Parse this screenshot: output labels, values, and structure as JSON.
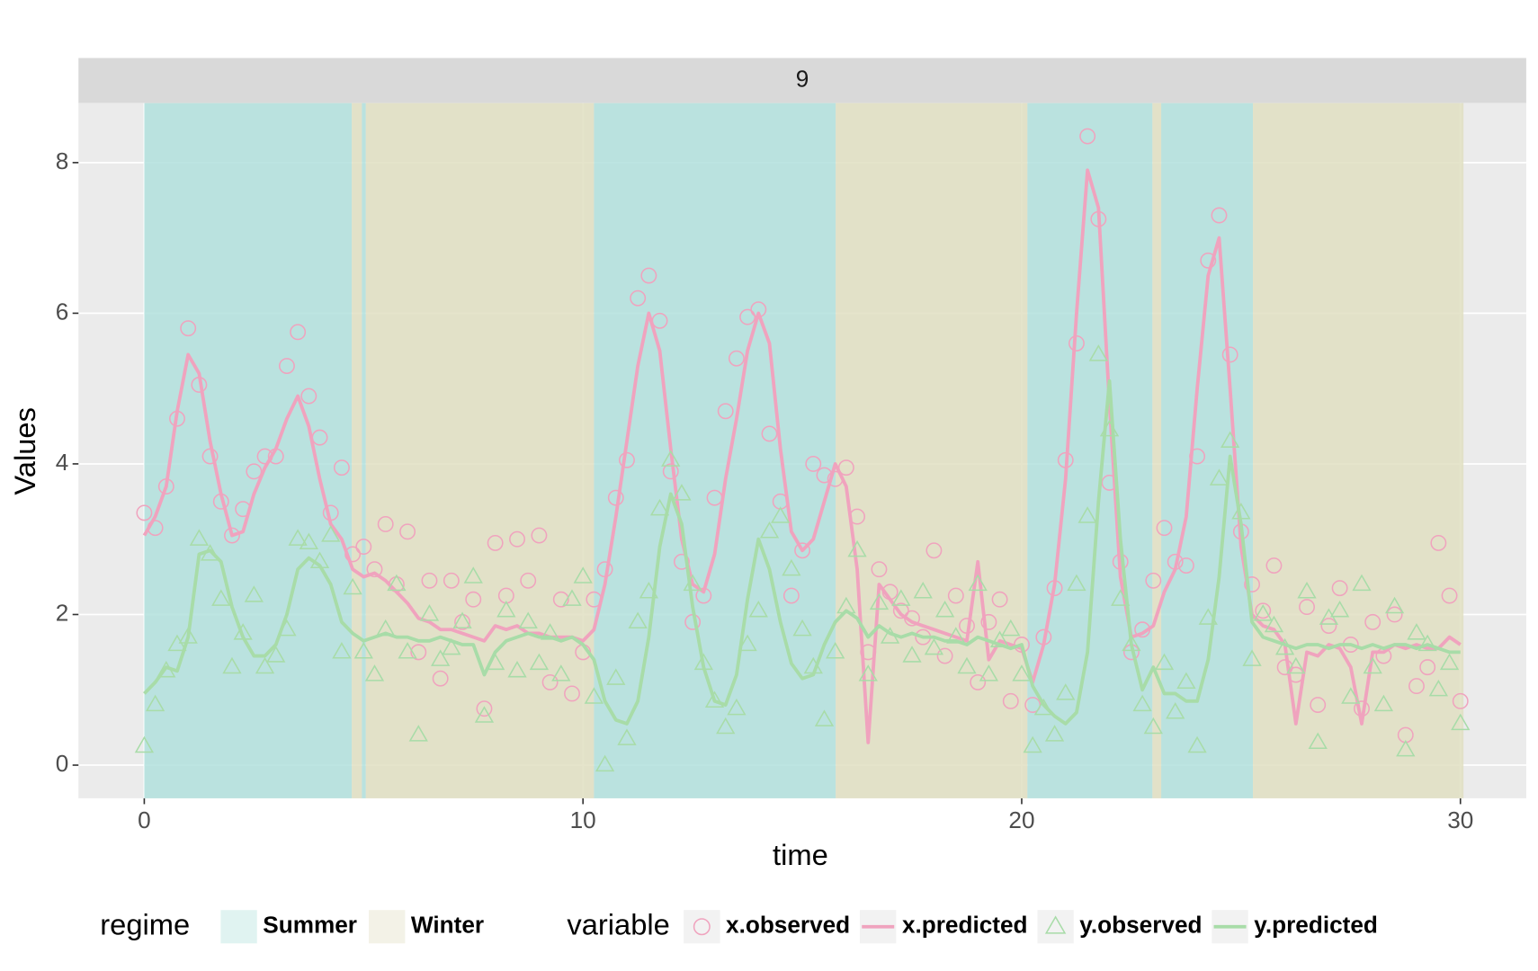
{
  "chart_data": {
    "type": "line",
    "facet_label": "9",
    "xlabel": "time",
    "ylabel": "Values",
    "xlim": [
      -1.5,
      31.5
    ],
    "ylim": [
      -0.44,
      8.79
    ],
    "xticks": [
      0,
      10,
      20,
      30
    ],
    "yticks": [
      0,
      2,
      4,
      6,
      8
    ],
    "grid": true,
    "regime_legend": {
      "title": "regime",
      "names": [
        "Summer",
        "Winter"
      ],
      "colors": [
        "#b2e0dd",
        "#e0dfc2"
      ]
    },
    "regimes": [
      {
        "regime": "Summer",
        "start": 0,
        "end": 4.73
      },
      {
        "regime": "Winter",
        "start": 4.73,
        "end": 4.96
      },
      {
        "regime": "Summer",
        "start": 4.96,
        "end": 5.05
      },
      {
        "regime": "Winter",
        "start": 5.05,
        "end": 10.25
      },
      {
        "regime": "Summer",
        "start": 10.25,
        "end": 15.76
      },
      {
        "regime": "Winter",
        "start": 15.76,
        "end": 20.13
      },
      {
        "regime": "Summer",
        "start": 20.13,
        "end": 22.98
      },
      {
        "regime": "Winter",
        "start": 22.98,
        "end": 23.18
      },
      {
        "regime": "Summer",
        "start": 23.18,
        "end": 25.27
      },
      {
        "regime": "Winter",
        "start": 25.27,
        "end": 30.07
      }
    ],
    "legend_title": "variable",
    "x": [
      0,
      0.25,
      0.5,
      0.75,
      1,
      1.25,
      1.5,
      1.75,
      2,
      2.25,
      2.5,
      2.75,
      3,
      3.25,
      3.5,
      3.75,
      4,
      4.25,
      4.5,
      4.75,
      5,
      5.25,
      5.5,
      5.75,
      6,
      6.25,
      6.5,
      6.75,
      7,
      7.25,
      7.5,
      7.75,
      8,
      8.25,
      8.5,
      8.75,
      9,
      9.25,
      9.5,
      9.75,
      10,
      10.25,
      10.5,
      10.75,
      11,
      11.25,
      11.5,
      11.75,
      12,
      12.25,
      12.5,
      12.75,
      13,
      13.25,
      13.5,
      13.75,
      14,
      14.25,
      14.5,
      14.75,
      15,
      15.25,
      15.5,
      15.75,
      16,
      16.25,
      16.5,
      16.75,
      17,
      17.25,
      17.5,
      17.75,
      18,
      18.25,
      18.5,
      18.75,
      19,
      19.25,
      19.5,
      19.75,
      20,
      20.25,
      20.5,
      20.75,
      21,
      21.25,
      21.5,
      21.75,
      22,
      22.25,
      22.5,
      22.75,
      23,
      23.25,
      23.5,
      23.75,
      24,
      24.25,
      24.5,
      24.75,
      25,
      25.25,
      25.5,
      25.75,
      26,
      26.25,
      26.5,
      26.75,
      27,
      27.25,
      27.5,
      27.75,
      28,
      28.25,
      28.5,
      28.75,
      29,
      29.25,
      29.5,
      29.75,
      30
    ],
    "series": [
      {
        "name": "x.observed",
        "color": "#f0a3be",
        "mode": "markers",
        "marker": "circle",
        "values": [
          3.35,
          3.15,
          3.7,
          4.6,
          5.8,
          5.05,
          4.1,
          3.5,
          3.05,
          3.4,
          3.9,
          4.1,
          4.1,
          5.3,
          5.75,
          4.9,
          4.35,
          3.35,
          3.95,
          2.8,
          2.9,
          2.6,
          3.2,
          2.4,
          3.1,
          1.5,
          2.45,
          1.15,
          2.45,
          1.9,
          2.2,
          0.75,
          2.95,
          2.25,
          3.0,
          2.45,
          3.05,
          1.1,
          2.2,
          0.95,
          1.5,
          2.2,
          2.6,
          3.55,
          4.05,
          6.2,
          6.5,
          5.9,
          3.9,
          2.7,
          1.9,
          2.25,
          3.55,
          4.7,
          5.4,
          5.95,
          6.05,
          4.4,
          3.5,
          2.25,
          2.85,
          4.0,
          3.85,
          3.8,
          3.95,
          3.3,
          1.5,
          2.6,
          2.3,
          2.05,
          1.95,
          1.7,
          2.85,
          1.45,
          2.25,
          1.85,
          1.1,
          1.9,
          2.2,
          0.85,
          1.6,
          0.8,
          1.7,
          2.35,
          4.05,
          5.6,
          8.35,
          7.25,
          3.75,
          2.7,
          1.5,
          1.8,
          2.45,
          3.15,
          2.7,
          2.65,
          4.1,
          6.7,
          7.3,
          5.45,
          3.1,
          2.4,
          2.05,
          2.65,
          1.3,
          1.2,
          2.1,
          0.8,
          1.85,
          2.35,
          1.6,
          0.75,
          1.9,
          1.45,
          2.0,
          0.4,
          1.05,
          1.3,
          2.95,
          2.25,
          0.85
        ]
      },
      {
        "name": "x.predicted",
        "color": "#f0a3be",
        "mode": "lines",
        "values": [
          3.05,
          3.3,
          3.7,
          4.7,
          5.45,
          5.2,
          4.3,
          3.6,
          3.05,
          3.1,
          3.6,
          3.95,
          4.2,
          4.6,
          4.9,
          4.5,
          3.8,
          3.2,
          3.0,
          2.6,
          2.5,
          2.55,
          2.45,
          2.3,
          2.15,
          1.95,
          1.9,
          1.8,
          1.8,
          1.75,
          1.7,
          1.65,
          1.85,
          1.8,
          1.85,
          1.75,
          1.75,
          1.7,
          1.7,
          1.7,
          1.65,
          1.8,
          2.4,
          3.3,
          4.3,
          5.3,
          6.0,
          5.5,
          4.2,
          3.0,
          2.4,
          2.3,
          2.8,
          3.8,
          4.6,
          5.5,
          6.0,
          5.6,
          4.2,
          3.1,
          2.85,
          3.0,
          3.5,
          4.0,
          3.7,
          2.6,
          0.3,
          2.4,
          2.2,
          2.0,
          1.9,
          1.85,
          1.8,
          1.75,
          1.7,
          1.65,
          2.7,
          1.4,
          1.65,
          1.6,
          1.55,
          1.1,
          1.6,
          2.4,
          3.8,
          6.0,
          7.9,
          7.4,
          4.8,
          2.5,
          1.7,
          1.75,
          1.85,
          2.3,
          2.6,
          3.3,
          5.0,
          6.5,
          7.0,
          5.0,
          2.9,
          2.0,
          1.85,
          1.8,
          1.6,
          0.55,
          1.5,
          1.45,
          1.6,
          1.55,
          1.3,
          0.55,
          1.5,
          1.5,
          1.6,
          1.55,
          1.6,
          1.55,
          1.55,
          1.7,
          1.6
        ]
      },
      {
        "name": "y.observed",
        "color": "#a8dca8",
        "mode": "markers",
        "marker": "triangle",
        "values": [
          0.25,
          0.8,
          1.25,
          1.6,
          1.7,
          3.0,
          2.8,
          2.2,
          1.3,
          1.75,
          2.25,
          1.3,
          1.45,
          1.8,
          3.0,
          2.95,
          2.7,
          3.05,
          1.5,
          2.35,
          1.5,
          1.2,
          1.8,
          2.4,
          1.5,
          0.4,
          2.0,
          1.4,
          1.55,
          1.9,
          2.5,
          0.65,
          1.35,
          2.05,
          1.25,
          1.9,
          1.35,
          1.75,
          1.2,
          2.2,
          2.5,
          0.9,
          0.0,
          1.15,
          0.35,
          1.9,
          2.3,
          3.4,
          4.05,
          3.6,
          2.4,
          1.35,
          0.85,
          0.5,
          0.75,
          1.6,
          2.05,
          3.1,
          3.3,
          2.6,
          1.8,
          1.3,
          0.6,
          1.5,
          2.1,
          2.85,
          1.2,
          2.15,
          1.7,
          2.2,
          1.45,
          2.3,
          1.55,
          2.05,
          1.7,
          1.3,
          2.4,
          1.2,
          1.65,
          1.8,
          1.2,
          0.25,
          0.75,
          0.4,
          0.95,
          2.4,
          3.3,
          5.45,
          4.45,
          2.2,
          1.6,
          0.8,
          0.5,
          1.35,
          0.7,
          1.1,
          0.25,
          1.95,
          3.8,
          4.3,
          3.35,
          1.4,
          2.0,
          1.85,
          1.55,
          1.3,
          2.3,
          0.3,
          1.95,
          2.05,
          0.9,
          2.4,
          1.3,
          0.8,
          2.1,
          0.2,
          1.75,
          1.6,
          1.0,
          1.35,
          0.55
        ]
      },
      {
        "name": "y.predicted",
        "color": "#a8dca8",
        "mode": "lines",
        "values": [
          0.95,
          1.1,
          1.3,
          1.25,
          1.7,
          2.8,
          2.85,
          2.7,
          2.1,
          1.7,
          1.45,
          1.45,
          1.6,
          2.0,
          2.6,
          2.75,
          2.65,
          2.4,
          1.9,
          1.75,
          1.65,
          1.7,
          1.75,
          1.7,
          1.7,
          1.65,
          1.65,
          1.7,
          1.65,
          1.6,
          1.6,
          1.2,
          1.5,
          1.65,
          1.7,
          1.75,
          1.7,
          1.7,
          1.65,
          1.7,
          1.6,
          1.4,
          0.85,
          0.6,
          0.55,
          0.85,
          1.7,
          2.9,
          3.6,
          3.2,
          2.1,
          1.3,
          0.85,
          0.8,
          1.2,
          2.2,
          3.0,
          2.6,
          1.9,
          1.35,
          1.15,
          1.2,
          1.6,
          1.9,
          2.05,
          1.95,
          1.7,
          1.85,
          1.75,
          1.7,
          1.75,
          1.7,
          1.7,
          1.65,
          1.65,
          1.6,
          1.7,
          1.65,
          1.6,
          1.55,
          1.6,
          1.05,
          0.8,
          0.65,
          0.55,
          0.7,
          1.5,
          3.5,
          5.1,
          3.0,
          1.6,
          1.0,
          1.3,
          0.95,
          0.95,
          0.85,
          0.85,
          1.4,
          2.5,
          4.1,
          3.2,
          1.9,
          1.7,
          1.65,
          1.6,
          1.55,
          1.6,
          1.6,
          1.55,
          1.6,
          1.6,
          1.55,
          1.6,
          1.55,
          1.6,
          1.6,
          1.55,
          1.6,
          1.55,
          1.5,
          1.5
        ]
      }
    ]
  }
}
